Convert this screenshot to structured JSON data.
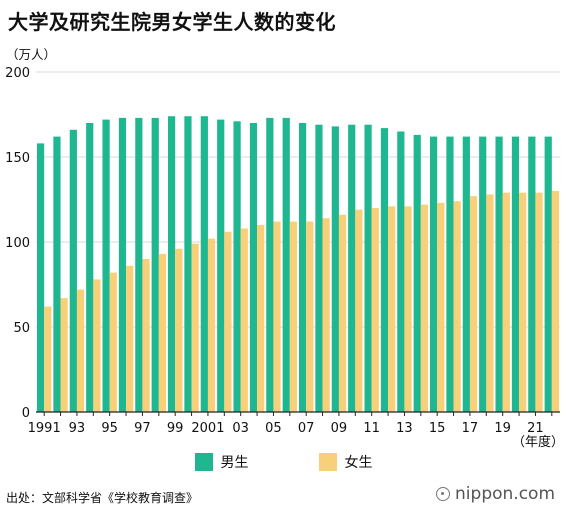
{
  "header": {
    "title": "大学及研究生院男女学生人数的变化",
    "unit": "（万人）"
  },
  "footer": {
    "source": "出处：文部科学省《学校教育调查》",
    "logo": "nippon.com"
  },
  "colors": {
    "male": "#1fb78f",
    "female": "#f9d07a",
    "grid": "#d9d9d9",
    "axis": "#222222"
  },
  "chart_data": {
    "type": "bar",
    "title": "大学及研究生院男女学生人数的变化",
    "ylabel": "（万人）",
    "xlabel": "（年度）",
    "ylim": [
      0,
      200
    ],
    "yticks": [
      0,
      50,
      100,
      150,
      200
    ],
    "grid": true,
    "legend": "bottom",
    "categories": [
      "1991",
      "1992",
      "1993",
      "1994",
      "1995",
      "1996",
      "1997",
      "1998",
      "1999",
      "2000",
      "2001",
      "2002",
      "2003",
      "2004",
      "2005",
      "2006",
      "2007",
      "2008",
      "2009",
      "2010",
      "2011",
      "2012",
      "2013",
      "2014",
      "2015",
      "2016",
      "2017",
      "2018",
      "2019",
      "2020",
      "2021",
      "2022"
    ],
    "tick_labels": [
      "1991",
      "",
      "93",
      "",
      "95",
      "",
      "97",
      "",
      "99",
      "",
      "2001",
      "",
      "03",
      "",
      "05",
      "",
      "07",
      "",
      "09",
      "",
      "11",
      "",
      "13",
      "",
      "15",
      "",
      "17",
      "",
      "19",
      "",
      "21",
      ""
    ],
    "series": [
      {
        "name": "男生",
        "values": [
          158,
          162,
          166,
          170,
          172,
          173,
          173,
          173,
          174,
          174,
          174,
          172,
          171,
          170,
          173,
          173,
          170,
          169,
          168,
          169,
          169,
          167,
          165,
          163,
          162,
          162,
          162,
          162,
          162,
          162,
          162,
          162
        ]
      },
      {
        "name": "女生",
        "values": [
          62,
          67,
          72,
          78,
          82,
          86,
          90,
          93,
          96,
          99,
          102,
          106,
          108,
          110,
          112,
          112,
          112,
          114,
          116,
          119,
          120,
          121,
          121,
          122,
          123,
          124,
          127,
          128,
          129,
          129,
          129,
          130
        ]
      }
    ]
  }
}
